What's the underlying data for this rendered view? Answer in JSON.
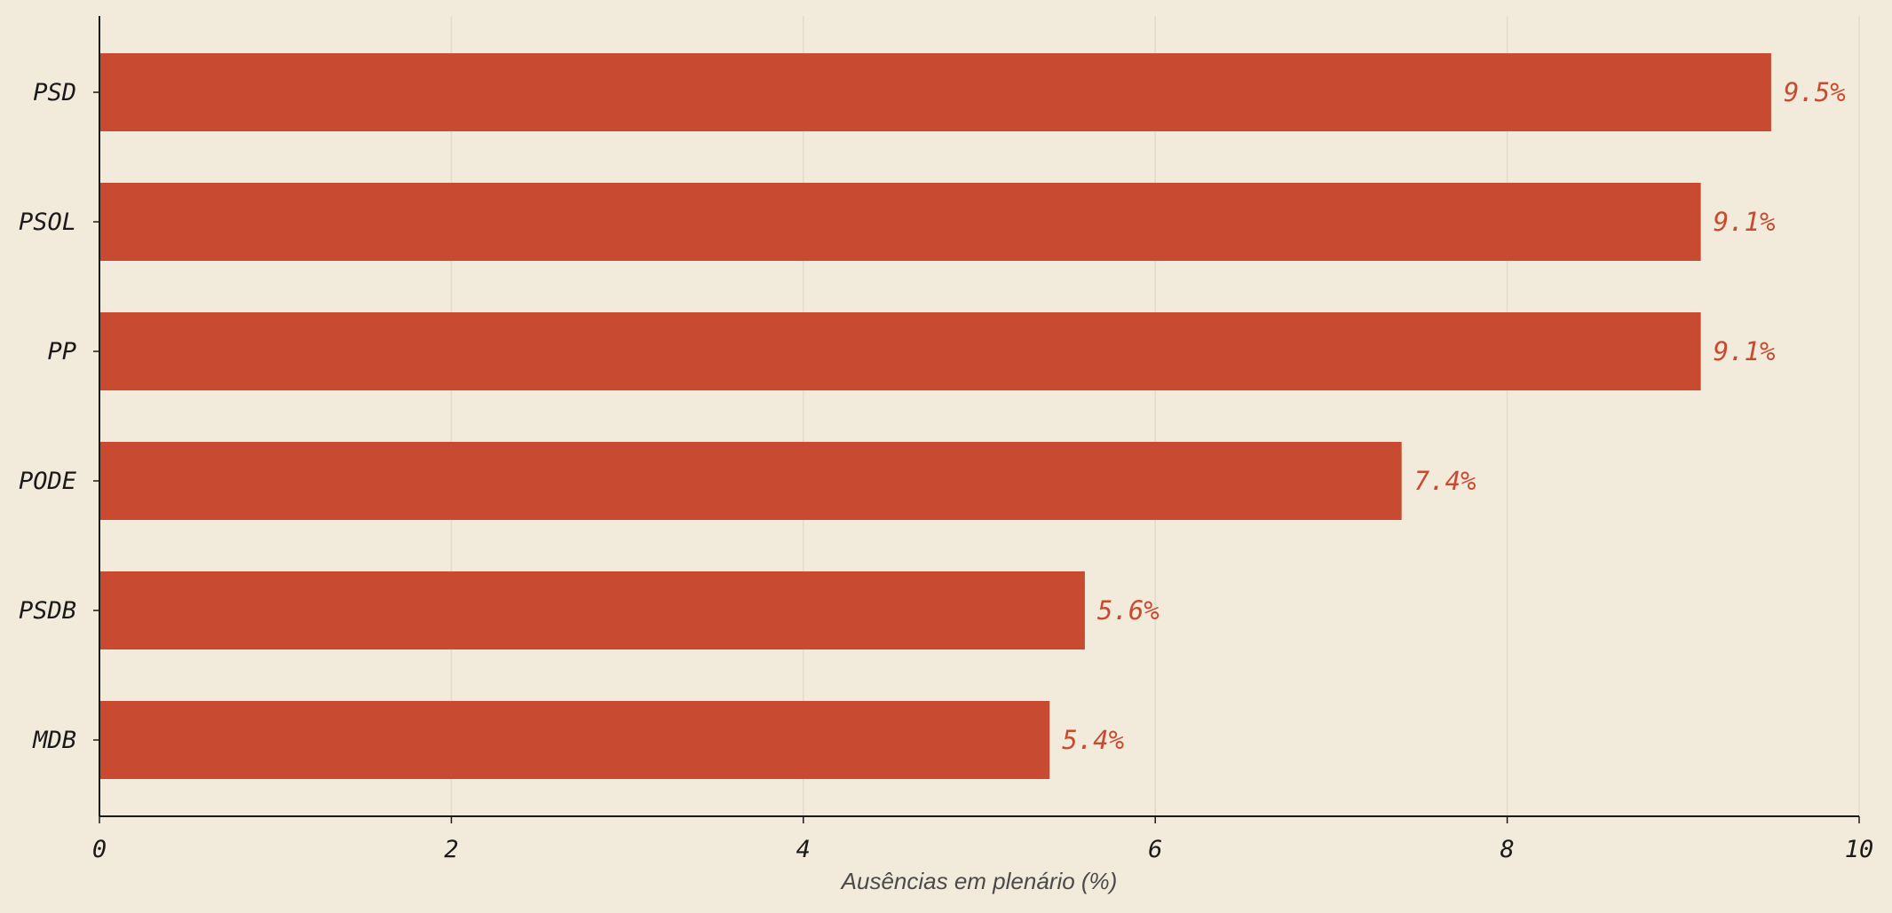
{
  "chart_data": {
    "type": "bar",
    "orientation": "horizontal",
    "categories": [
      "PSD",
      "PSOL",
      "PP",
      "PODE",
      "PSDB",
      "MDB"
    ],
    "values": [
      9.5,
      9.1,
      9.1,
      7.4,
      5.6,
      5.4
    ],
    "value_labels": [
      "9.5%",
      "9.1%",
      "9.1%",
      "7.4%",
      "5.6%",
      "5.4%"
    ],
    "title": "",
    "xlabel": "Ausências em plenário (%)",
    "ylabel": "",
    "xlim": [
      0,
      10
    ],
    "xticks": [
      0,
      2,
      4,
      6,
      8,
      10
    ],
    "xtick_labels": [
      "0",
      "2",
      "4",
      "6",
      "8",
      "10"
    ],
    "grid": "vertical",
    "legend": "none",
    "colors": {
      "bar": "#c84b31",
      "value_label": "#c84b31",
      "grid": "#e2dccd",
      "axis": "#1a1a1a",
      "background": "#f2eadb"
    }
  }
}
